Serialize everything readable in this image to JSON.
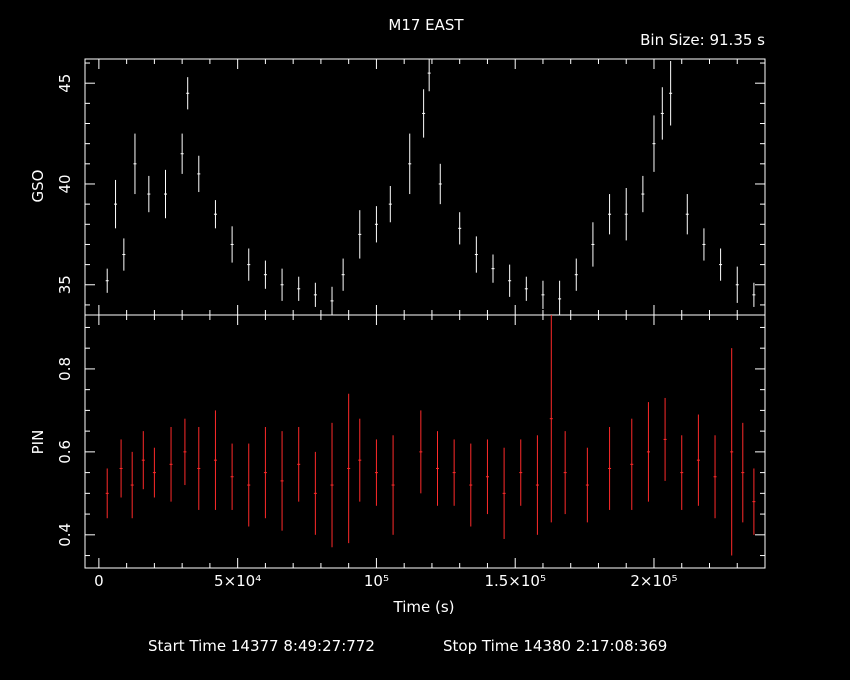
{
  "title": "M17 EAST",
  "bin_size": "Bin Size: 91.35 s",
  "xlabel": "Time (s)",
  "footer": {
    "start": "Start Time 14377  8:49:27:772",
    "stop": "Stop Time 14380  2:17:08:369"
  },
  "colors": {
    "background": "#000000",
    "axes": "#ffffff",
    "gso": "#ffffff",
    "pin": "#ff2a2a"
  },
  "chart_data": [
    {
      "type": "scatter",
      "ylabel": "GSO",
      "xlim": [
        -5000,
        240000
      ],
      "ylim": [
        33.5,
        46.2
      ],
      "xticks": [
        0,
        50000,
        100000,
        150000,
        200000
      ],
      "yticks": [
        35,
        40,
        45
      ],
      "ytick_labels": [
        "35",
        "40",
        "45"
      ],
      "series": [
        {
          "x": [
            3000,
            6000,
            9000,
            13000,
            18000,
            24000,
            30000,
            32000,
            36000,
            42000,
            48000,
            54000,
            60000,
            66000,
            72000,
            78000,
            84000,
            88000,
            94000,
            100000,
            105000,
            112000,
            117000,
            119000,
            123000,
            130000,
            136000,
            142000,
            148000,
            154000,
            160000,
            166000,
            172000,
            178000,
            184000,
            190000,
            196000,
            200000,
            203000,
            206000,
            212000,
            218000,
            224000,
            230000,
            236000
          ],
          "y": [
            35.2,
            39.0,
            36.5,
            41.0,
            39.5,
            39.5,
            41.5,
            44.5,
            40.5,
            38.5,
            37.0,
            36.0,
            35.5,
            35.0,
            34.8,
            34.5,
            34.2,
            35.5,
            37.5,
            38.0,
            39.0,
            41.0,
            43.5,
            45.5,
            40.0,
            37.8,
            36.5,
            35.8,
            35.2,
            34.8,
            34.5,
            34.3,
            35.5,
            37.0,
            38.5,
            38.5,
            39.5,
            42.0,
            43.5,
            44.5,
            38.5,
            37.0,
            36.0,
            35.0,
            34.5
          ],
          "err": [
            0.6,
            1.2,
            0.8,
            1.5,
            0.9,
            1.2,
            1.0,
            0.8,
            0.9,
            0.7,
            0.9,
            0.8,
            0.7,
            0.8,
            0.6,
            0.6,
            0.7,
            0.8,
            1.2,
            0.9,
            0.9,
            1.5,
            1.2,
            0.9,
            1.0,
            0.8,
            0.9,
            0.7,
            0.8,
            0.6,
            0.7,
            0.9,
            0.8,
            1.1,
            1.0,
            1.3,
            0.9,
            1.4,
            1.3,
            1.6,
            1.0,
            0.8,
            0.8,
            0.9,
            0.6
          ]
        }
      ]
    },
    {
      "type": "scatter",
      "ylabel": "PIN",
      "xlim": [
        -5000,
        240000
      ],
      "ylim": [
        0.32,
        0.93
      ],
      "xticks": [
        0,
        50000,
        100000,
        150000,
        200000
      ],
      "xtick_labels": [
        "0",
        "5×10⁴",
        "10⁵",
        "1.5×10⁵",
        "2×10⁵"
      ],
      "yticks": [
        0.4,
        0.6,
        0.8
      ],
      "ytick_labels": [
        "0.4",
        "0.6",
        "0.8"
      ],
      "series": [
        {
          "x": [
            3000,
            8000,
            12000,
            16000,
            20000,
            26000,
            31000,
            36000,
            42000,
            48000,
            54000,
            60000,
            66000,
            72000,
            78000,
            84000,
            90000,
            94000,
            100000,
            106000,
            116000,
            122000,
            128000,
            134000,
            140000,
            146000,
            152000,
            158000,
            163000,
            168000,
            176000,
            184000,
            192000,
            198000,
            204000,
            210000,
            216000,
            222000,
            228000,
            232000,
            236000
          ],
          "y": [
            0.5,
            0.56,
            0.52,
            0.58,
            0.55,
            0.57,
            0.6,
            0.56,
            0.58,
            0.54,
            0.52,
            0.55,
            0.53,
            0.57,
            0.5,
            0.52,
            0.56,
            0.58,
            0.55,
            0.52,
            0.6,
            0.56,
            0.55,
            0.52,
            0.54,
            0.5,
            0.55,
            0.52,
            0.68,
            0.55,
            0.52,
            0.56,
            0.57,
            0.6,
            0.63,
            0.55,
            0.58,
            0.54,
            0.6,
            0.55,
            0.48
          ],
          "err": [
            0.06,
            0.07,
            0.08,
            0.07,
            0.06,
            0.09,
            0.08,
            0.1,
            0.12,
            0.08,
            0.1,
            0.11,
            0.12,
            0.09,
            0.1,
            0.15,
            0.18,
            0.1,
            0.08,
            0.12,
            0.1,
            0.09,
            0.08,
            0.1,
            0.09,
            0.11,
            0.08,
            0.12,
            0.25,
            0.1,
            0.09,
            0.1,
            0.11,
            0.12,
            0.1,
            0.09,
            0.11,
            0.1,
            0.25,
            0.12,
            0.08
          ]
        }
      ]
    }
  ]
}
